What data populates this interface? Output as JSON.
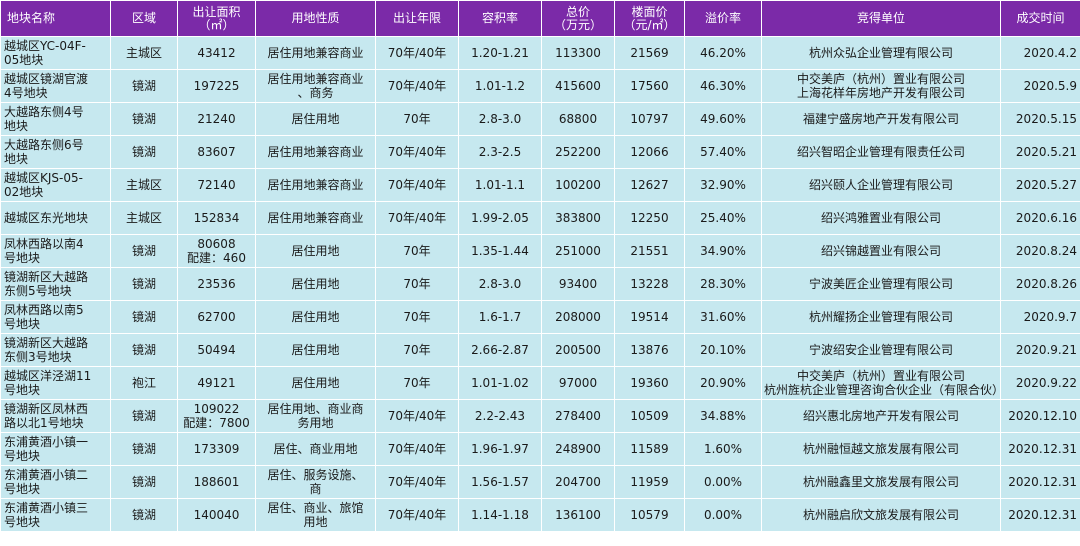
{
  "headers": [
    "地块名称",
    "区域",
    "出让面积\n（㎡）",
    "用地性质",
    "出让年限",
    "容积率",
    "总价\n（万元）",
    "楼面价\n（元/㎡）",
    "溢价率",
    "竞得单位",
    "成交时间"
  ],
  "rows": [
    {
      "name": "越城区YC-04F-\n05地块",
      "area": "主城区",
      "size": "43412",
      "use": "居住用地兼容商业",
      "term": "70年/40年",
      "far": "1.20-1.21",
      "total": "113300",
      "floor_price": "21569",
      "premium": "46.20%",
      "winner": "杭州众弘企业管理有限公司",
      "date": "2020.4.2"
    },
    {
      "name": "越城区镜湖官渡\n4号地块",
      "area": "镜湖",
      "size": "197225",
      "use": "居住用地兼容商业\n、商务",
      "term": "70年/40年",
      "far": "1.01-1.2",
      "total": "415600",
      "floor_price": "17560",
      "premium": "46.30%",
      "winner": "中交美庐（杭州）置业有限公司\n上海花样年房地产开发有限公司",
      "date": "2020.5.9"
    },
    {
      "name": "大越路东侧4号\n地块",
      "area": "镜湖",
      "size": "21240",
      "use": "居住用地",
      "term": "70年",
      "far": "2.8-3.0",
      "total": "68800",
      "floor_price": "10797",
      "premium": "49.60%",
      "winner": "福建宁盛房地产开发有限公司",
      "date": "2020.5.15"
    },
    {
      "name": "大越路东侧6号\n地块",
      "area": "镜湖",
      "size": "83607",
      "use": "居住用地兼容商业",
      "term": "70年/40年",
      "far": "2.3-2.5",
      "total": "252200",
      "floor_price": "12066",
      "premium": "57.40%",
      "winner": "绍兴智昭企业管理有限责任公司",
      "date": "2020.5.21"
    },
    {
      "name": "越城区KJS-05-\n02地块",
      "area": "主城区",
      "size": "72140",
      "use": "居住用地兼容商业",
      "term": "70年/40年",
      "far": "1.01-1.1",
      "total": "100200",
      "floor_price": "12627",
      "premium": "32.90%",
      "winner": "绍兴颐人企业管理有限公司",
      "date": "2020.5.27"
    },
    {
      "name": "越城区东光地块",
      "area": "主城区",
      "size": "152834",
      "use": "居住用地兼容商业",
      "term": "70年/40年",
      "far": "1.99-2.05",
      "total": "383800",
      "floor_price": "12250",
      "premium": "25.40%",
      "winner": "绍兴鸿雅置业有限公司",
      "date": "2020.6.16"
    },
    {
      "name": "凤林西路以南4\n号地块",
      "area": "镜湖",
      "size": "80608\n配建：460",
      "use": "居住用地",
      "term": "70年",
      "far": "1.35-1.44",
      "total": "251000",
      "floor_price": "21551",
      "premium": "34.90%",
      "winner": "绍兴锦越置业有限公司",
      "date": "2020.8.24"
    },
    {
      "name": "镜湖新区大越路\n东侧5号地块",
      "area": "镜湖",
      "size": "23536",
      "use": "居住用地",
      "term": "70年",
      "far": "2.8-3.0",
      "total": "93400",
      "floor_price": "13228",
      "premium": "28.30%",
      "winner": "宁波美匠企业管理有限公司",
      "date": "2020.8.26"
    },
    {
      "name": "凤林西路以南5\n号地块",
      "area": "镜湖",
      "size": "62700",
      "use": "居住用地",
      "term": "70年",
      "far": "1.6-1.7",
      "total": "208000",
      "floor_price": "19514",
      "premium": "31.60%",
      "winner": "杭州耀扬企业管理有限公司",
      "date": "2020.9.7"
    },
    {
      "name": "镜湖新区大越路\n东侧3号地块",
      "area": "镜湖",
      "size": "50494",
      "use": "居住用地",
      "term": "70年",
      "far": "2.66-2.87",
      "total": "200500",
      "floor_price": "13876",
      "premium": "20.10%",
      "winner": "宁波绍安企业管理有限公司",
      "date": "2020.9.21"
    },
    {
      "name": "越城区洋泾湖11\n号地块",
      "area": "袍江",
      "size": "49121",
      "use": "居住用地",
      "term": "70年",
      "far": "1.01-1.02",
      "total": "97000",
      "floor_price": "19360",
      "premium": "20.90%",
      "winner": "中交美庐（杭州）置业有限公司\n杭州旌杭企业管理咨询合伙企业（有限合伙）",
      "date": "2020.9.22"
    },
    {
      "name": "镜湖新区凤林西\n路以北1号地块",
      "area": "镜湖",
      "size": "109022\n配建：7800",
      "use": "居住用地、商业商\n务用地",
      "term": "70年/40年",
      "far": "2.2-2.43",
      "total": "278400",
      "floor_price": "10509",
      "premium": "34.88%",
      "winner": "绍兴惠北房地产开发有限公司",
      "date": "2020.12.10"
    },
    {
      "name": "东浦黄酒小镇一\n号地块",
      "area": "镜湖",
      "size": "173309",
      "use": "居住、商业用地",
      "term": "70年/40年",
      "far": "1.96-1.97",
      "total": "248900",
      "floor_price": "11589",
      "premium": "1.60%",
      "winner": "杭州融恒越文旅发展有限公司",
      "date": "2020.12.31"
    },
    {
      "name": "东浦黄酒小镇二\n号地块",
      "area": "镜湖",
      "size": "188601",
      "use": "居住、服务设施、\n商",
      "term": "70年/40年",
      "far": "1.56-1.57",
      "total": "204700",
      "floor_price": "11959",
      "premium": "0.00%",
      "winner": "杭州融鑫里文旅发展有限公司",
      "date": "2020.12.31"
    },
    {
      "name": "东浦黄酒小镇三\n号地块",
      "area": "镜湖",
      "size": "140040",
      "use": "居住、商业、旅馆\n用地",
      "term": "70年/40年",
      "far": "1.14-1.18",
      "total": "136100",
      "floor_price": "10579",
      "premium": "0.00%",
      "winner": "杭州融启欣文旅发展有限公司",
      "date": "2020.12.31"
    }
  ],
  "colors": {
    "header_bg": "#7b2aa8",
    "header_text": "#ffffff",
    "row_bg": "#c6e8ef",
    "grid": "#ffffff"
  }
}
